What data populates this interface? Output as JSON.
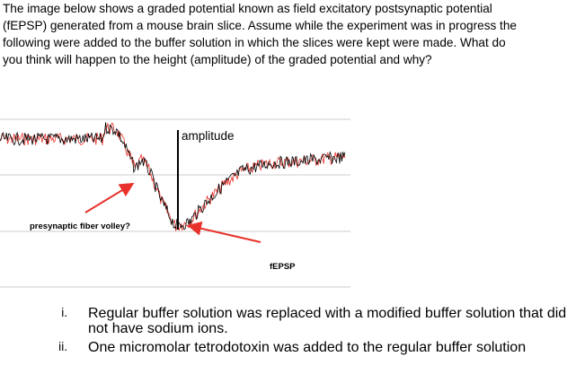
{
  "question": {
    "lines": [
      "The image below shows a graded potential known as field excitatory postsynaptic potential",
      "(fEPSP) generated from a mouse brain slice. Assume while the experiment was in progress the",
      "following were added to the buffer solution in which the slices were kept were made. What do",
      "you think will happen to the height (amplitude) of the graded potential and why?"
    ]
  },
  "figure": {
    "amplitude_label": "amplitude",
    "volley_label": "presynaptic fiber volley?",
    "fepsp_label": "fEPSP"
  },
  "options": [
    {
      "marker": "i.",
      "text": "Regular buffer solution was replaced with a modified buffer solution that did not have sodium ions."
    },
    {
      "marker": "ii.",
      "text": "One micromolar tetrodotoxin was added to the regular buffer solution"
    }
  ]
}
